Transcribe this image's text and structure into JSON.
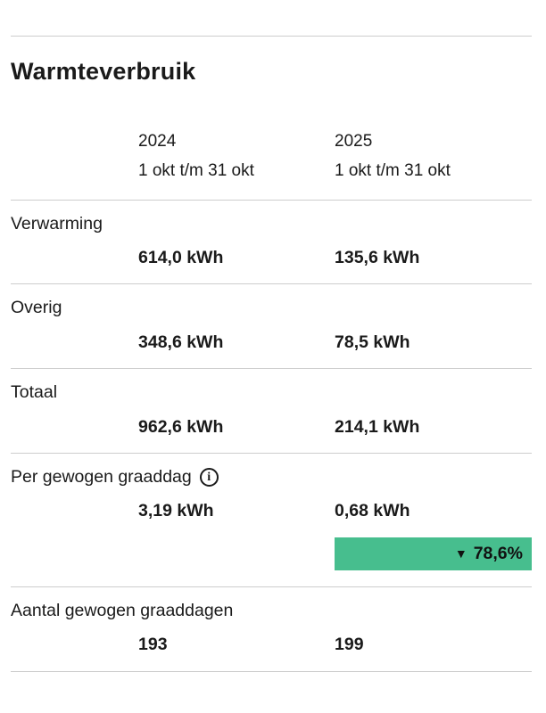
{
  "page": {
    "title": "Warmteverbruik"
  },
  "columns": [
    {
      "year": "2024",
      "period": "1 okt t/m 31 okt"
    },
    {
      "year": "2025",
      "period": "1 okt t/m 31 okt"
    }
  ],
  "rows": [
    {
      "label": "Verwarming",
      "values": [
        "614,0 kWh",
        "135,6 kWh"
      ]
    },
    {
      "label": "Overig",
      "values": [
        "348,6 kWh",
        "78,5 kWh"
      ]
    },
    {
      "label": "Totaal",
      "values": [
        "962,6 kWh",
        "214,1 kWh"
      ]
    },
    {
      "label": "Per gewogen graaddag",
      "values": [
        "3,19 kWh",
        "0,68 kWh"
      ],
      "badge": {
        "arrow": "▼",
        "text": "78,6%"
      }
    },
    {
      "label": "Aantal gewogen graaddagen",
      "values": [
        "193",
        "199"
      ]
    }
  ],
  "icons": {
    "info": "i"
  },
  "colors": {
    "badge_green": "#47be8e",
    "divider": "#cdcdcd",
    "text": "#1a1a1a"
  }
}
